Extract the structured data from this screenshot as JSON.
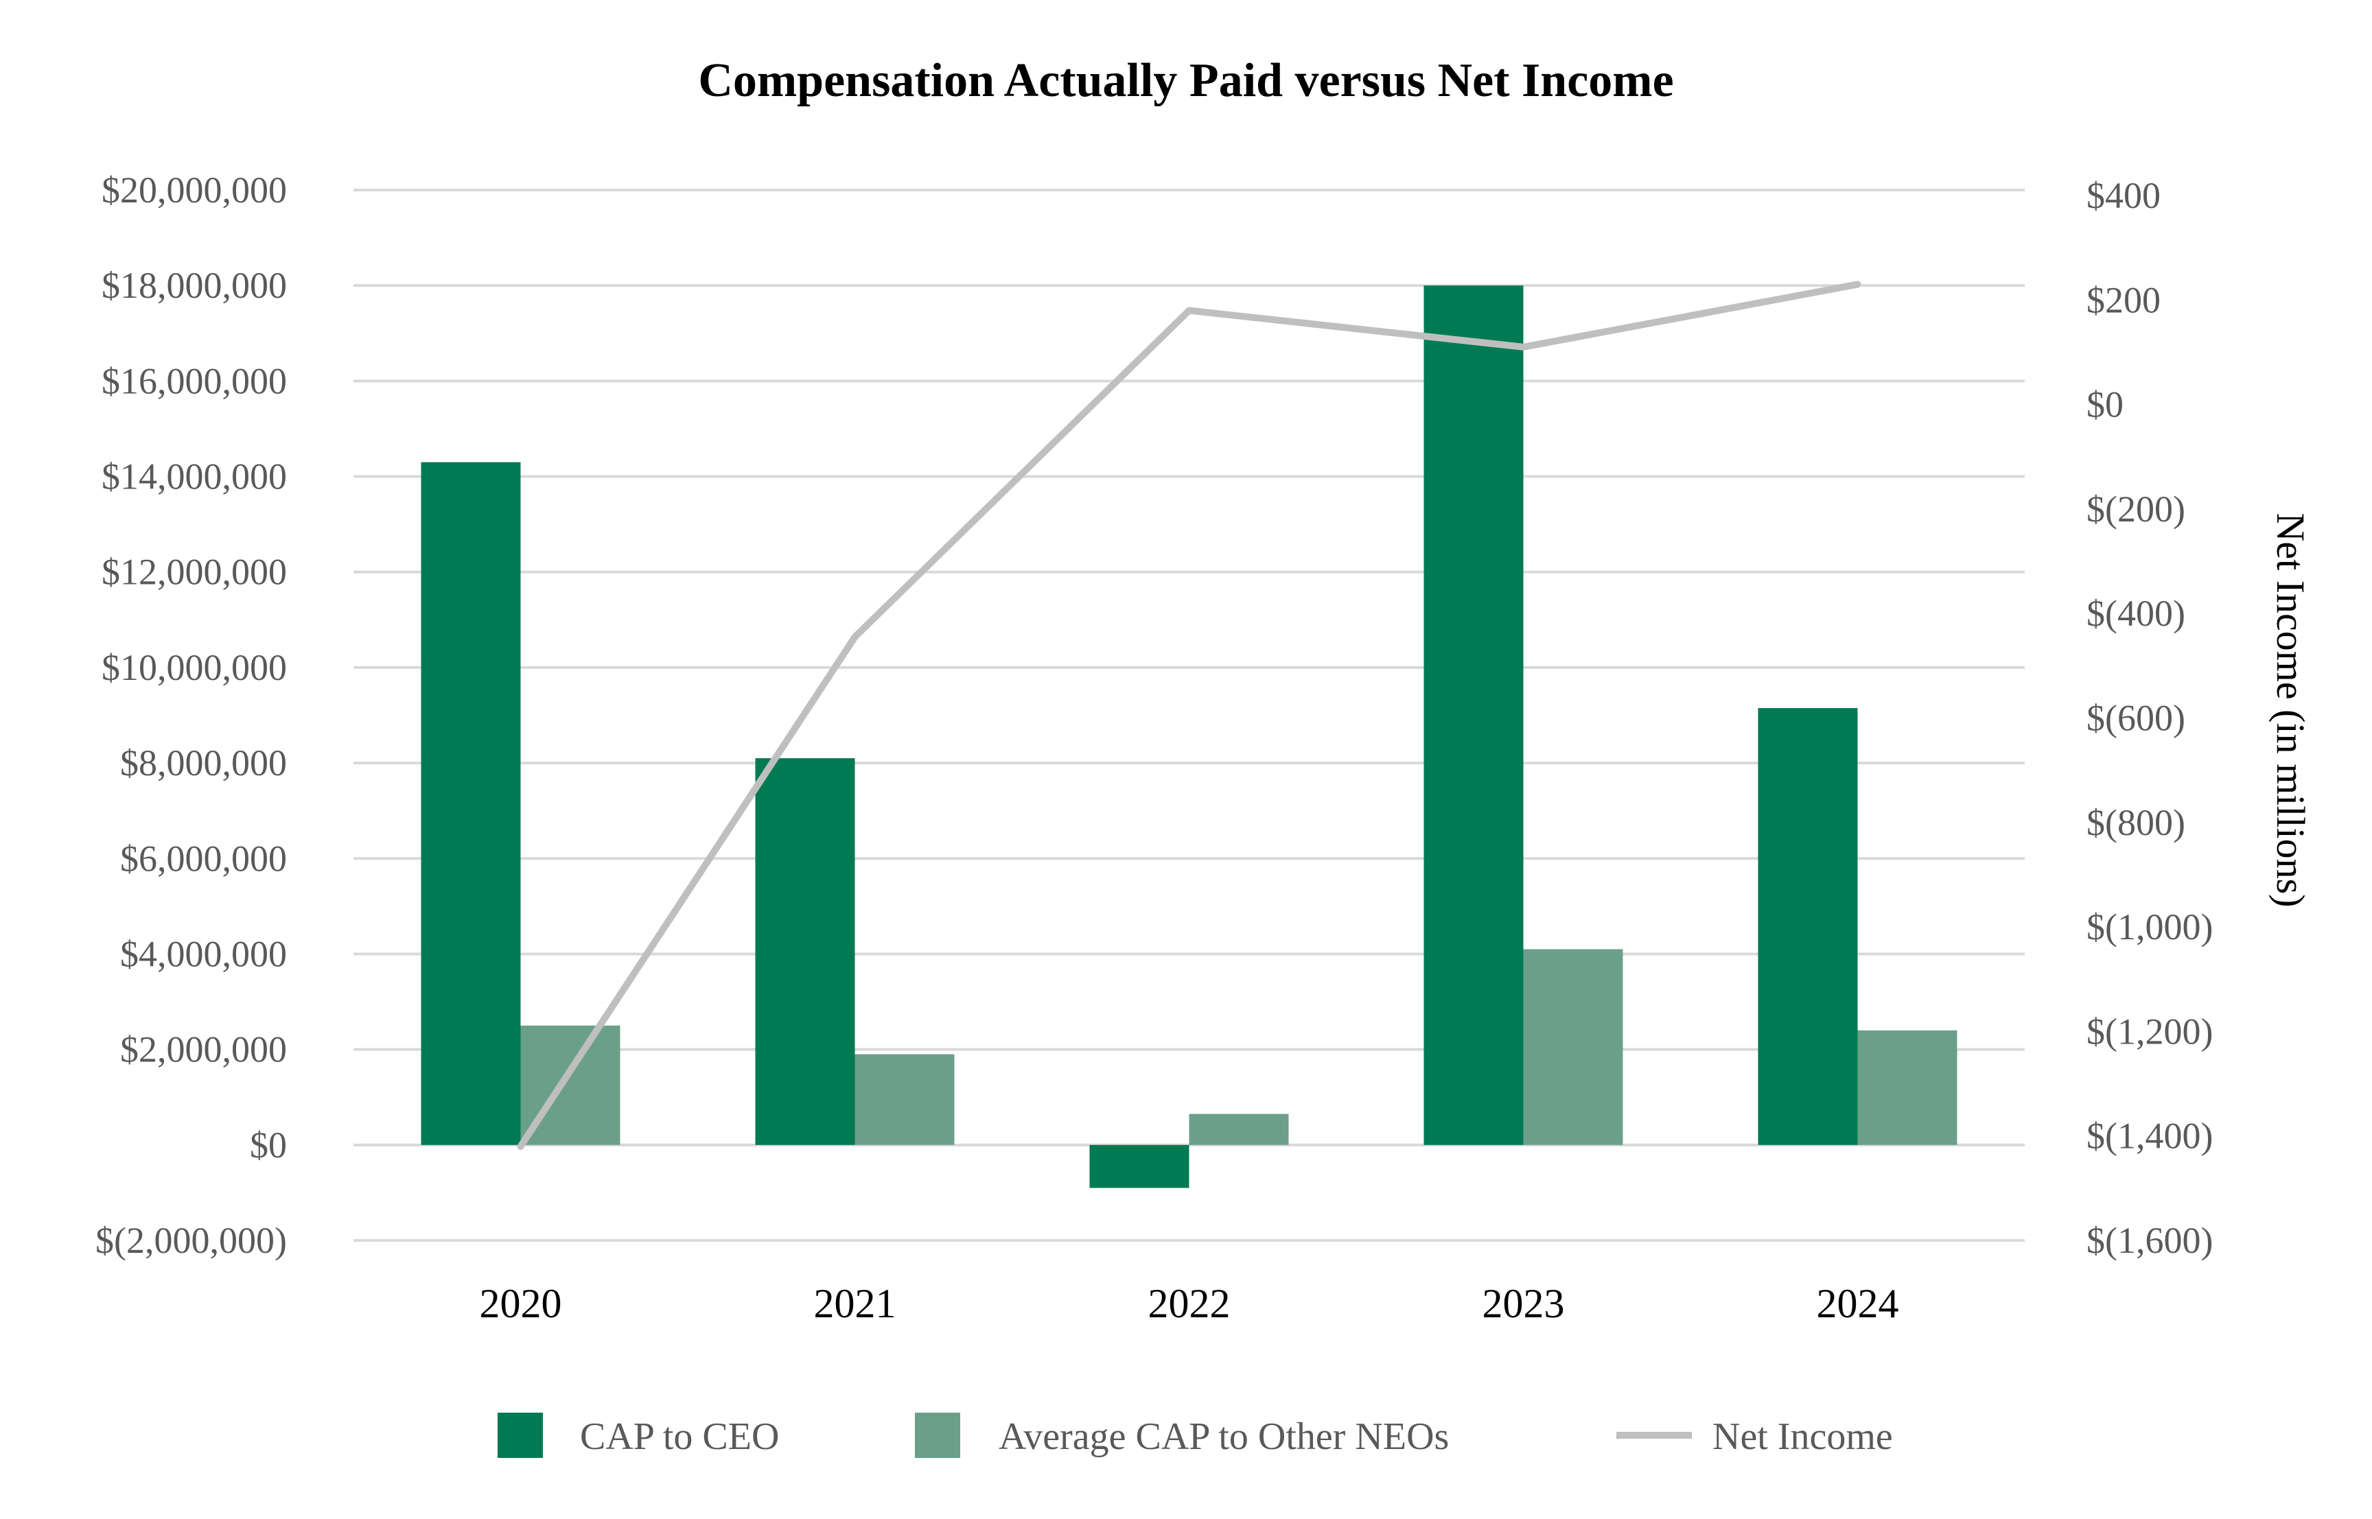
{
  "chart_data": {
    "type": "bar",
    "title": "Compensation Actually Paid versus Net Income",
    "categories": [
      "2020",
      "2021",
      "2022",
      "2023",
      "2024"
    ],
    "series": [
      {
        "name": "CAP to CEO",
        "type": "bar",
        "axis": "left",
        "color": "#007A53",
        "values": [
          14300000,
          8100000,
          -900000,
          18000000,
          9150000
        ]
      },
      {
        "name": "Average CAP to Other NEOs",
        "type": "bar",
        "axis": "left",
        "color": "#6AA08A",
        "values": [
          2500000,
          1900000,
          650000,
          4100000,
          2400000
        ]
      },
      {
        "name": "Net Income",
        "type": "line",
        "axis": "right",
        "color": "#BFBFBF",
        "values": [
          -1420,
          -445,
          180,
          110,
          230
        ]
      }
    ],
    "left_axis": {
      "ylim": [
        -2000000,
        20000000
      ],
      "ticks": [
        -2000000,
        0,
        2000000,
        4000000,
        6000000,
        8000000,
        10000000,
        12000000,
        14000000,
        16000000,
        18000000,
        20000000
      ],
      "tick_labels": [
        "$(2,000,000)",
        "$0",
        "$2,000,000",
        "$4,000,000",
        "$6,000,000",
        "$8,000,000",
        "$10,000,000",
        "$12,000,000",
        "$14,000,000",
        "$16,000,000",
        "$18,000,000",
        "$20,000,000"
      ]
    },
    "right_axis": {
      "ylabel": "Net Income (in millions)",
      "ylim": [
        -1600,
        400
      ],
      "ticks": [
        -1600,
        -1400,
        -1200,
        -1000,
        -800,
        -600,
        -400,
        -200,
        0,
        200,
        400
      ],
      "tick_labels": [
        "$(1,600)",
        "$(1,400)",
        "$(1,200)",
        "$(1,000)",
        "$(800)",
        "$(600)",
        "$(400)",
        "$(200)",
        "$0",
        "$200",
        "$400"
      ]
    },
    "grid": true,
    "legend_position": "bottom"
  }
}
